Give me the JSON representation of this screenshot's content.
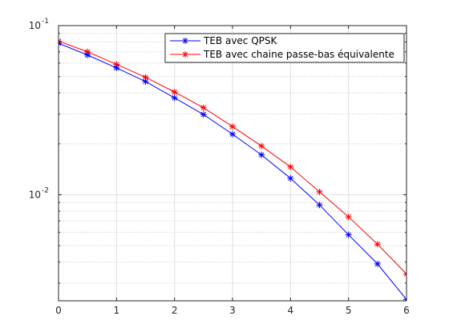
{
  "chart_data": {
    "type": "line",
    "title": "",
    "xlabel": "",
    "ylabel": "",
    "xlim": [
      0,
      6
    ],
    "ylim": [
      0.00236,
      0.1
    ],
    "y_scale": "log",
    "grid": true,
    "minor_grid_y": true,
    "legend_position": "top-right",
    "x_ticks": [
      0,
      1,
      2,
      3,
      4,
      5,
      6
    ],
    "x_tick_labels": [
      "0",
      "1",
      "2",
      "3",
      "4",
      "5",
      "6"
    ],
    "y_ticks": [
      0.01,
      0.1
    ],
    "y_tick_labels": [
      {
        "base": "10",
        "exp": "-2"
      },
      {
        "base": "10",
        "exp": "-1"
      }
    ],
    "x": [
      0,
      0.5,
      1,
      1.5,
      2,
      2.5,
      3,
      3.5,
      4,
      4.5,
      5,
      5.5,
      6
    ],
    "series": [
      {
        "name": "TEB avec QPSK",
        "color": "#0000ff",
        "marker": "asterisk",
        "values": [
          0.0786,
          0.067,
          0.0562,
          0.0467,
          0.0374,
          0.0298,
          0.0228,
          0.0172,
          0.0125,
          0.0087,
          0.0058,
          0.0039,
          0.0024
        ]
      },
      {
        "name": "TEB avec chaine passe-bas équivalente",
        "color": "#ff0000",
        "marker": "asterisk",
        "values": [
          0.081,
          0.07,
          0.059,
          0.0495,
          0.0405,
          0.0327,
          0.0253,
          0.0194,
          0.0146,
          0.0104,
          0.0074,
          0.0051,
          0.0034
        ]
      }
    ]
  }
}
